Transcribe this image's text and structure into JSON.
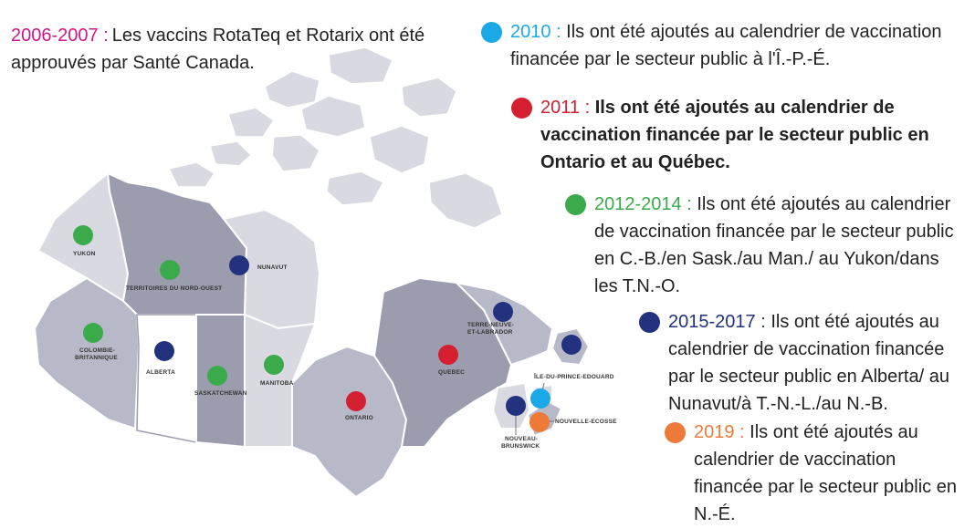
{
  "intro": {
    "year": "2006-2007 :",
    "year_color": "#d0168a",
    "text": "Les vaccins RotaTeq et Rotarix ont été approuvés par Santé Canada."
  },
  "colors": {
    "cyan": "#1aa9e6",
    "red": "#d31f30",
    "green": "#3aaa4a",
    "navy": "#22327f",
    "orange": "#ee7a3a",
    "map_dark": "#9b9cae",
    "map_mid": "#b8b9c8",
    "map_light": "#d9d9e2",
    "map_white": "#ffffff"
  },
  "legend": [
    {
      "year": "2010 :",
      "text": "Ils ont été ajoutés au calendrier de vaccination financée par le secteur public à l'Î.-P.-É.",
      "color": "#1aa9e6",
      "bold": false
    },
    {
      "year": "2011 :",
      "text": "Ils ont été ajoutés au calendrier de vaccination financée par le secteur public en Ontario et au Québec.",
      "color": "#d31f30",
      "bold": true
    },
    {
      "year": "2012-2014 :",
      "text": "Ils ont été ajoutés au calendrier de vaccination financée par le secteur public en C.-B./en Sask./au Man./ au Yukon/dans les T.N.-O.",
      "color": "#3aaa4a",
      "bold": false
    },
    {
      "year": "2015-2017 :",
      "text": "Ils ont été ajoutés au calendrier de vaccination financée par le secteur public en Alberta/ au Nunavut/à T.-N.-L./au N.-B.",
      "color": "#22327f",
      "bold": false
    },
    {
      "year": "2019 :",
      "text": "Ils ont été ajoutés au calendrier de vaccination financée par le secteur public en N.-É.",
      "color": "#ee7a3a",
      "bold": false
    }
  ],
  "provinces": {
    "yukon": "YUKON",
    "nwt": "TERRITOIRES DU NORD-OUEST",
    "nunavut": "NUNAVUT",
    "bc_1": "COLOMBIE-",
    "bc_2": "BRITANNIQUE",
    "alberta": "ALBERTA",
    "sask": "SASKATCHEWAN",
    "manitoba": "MANITOBA",
    "ontario": "ONTARIO",
    "quebec": "QUEBEC",
    "nl_1": "TERRE-NEUVE-",
    "nl_2": "ET-LABRADOR",
    "pei": "ÎLE-DU-PRINCE-EDOUARD",
    "ns": "NOUVELLE-ECOSSE",
    "nb_1": "NOUVEAU-",
    "nb_2": "BRUNSWICK"
  }
}
